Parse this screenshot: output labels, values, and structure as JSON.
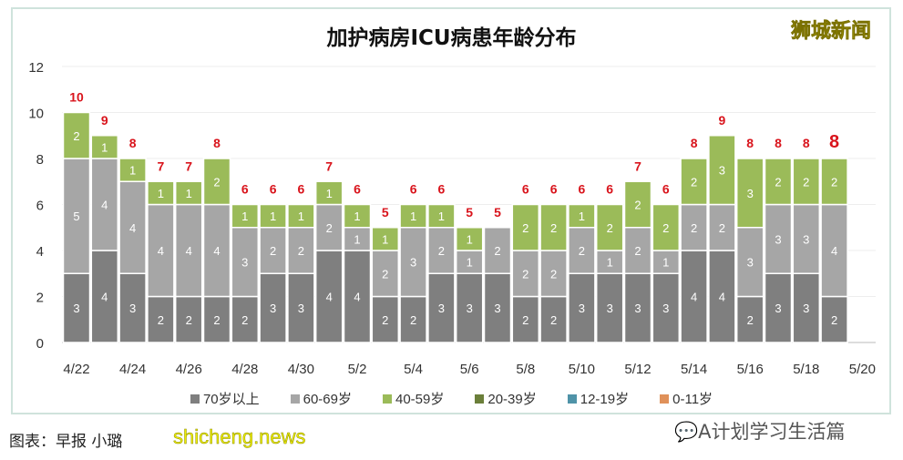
{
  "chart_data": {
    "type": "stacked-bar",
    "title": "加护病房ICU病患年龄分布",
    "categories": [
      "4/22",
      "4/23",
      "4/24",
      "4/25",
      "4/26",
      "4/27",
      "4/28",
      "4/29",
      "4/30",
      "5/1",
      "5/2",
      "5/3",
      "5/4",
      "5/5",
      "5/6",
      "5/7",
      "5/8",
      "5/9",
      "5/10",
      "5/11",
      "5/12",
      "5/13",
      "5/14",
      "5/15",
      "5/16",
      "5/17",
      "5/18",
      "5/19"
    ],
    "xtick_labels": [
      "4/22",
      "4/24",
      "4/26",
      "4/28",
      "4/30",
      "5/2",
      "5/4",
      "5/6",
      "5/8",
      "5/10",
      "5/12",
      "5/14",
      "5/16",
      "5/18",
      "5/20"
    ],
    "ytick_labels": [
      "0",
      "2",
      "4",
      "6",
      "8",
      "10",
      "12"
    ],
    "ylim": [
      0,
      12
    ],
    "grid": true,
    "legend_placement": "bottom",
    "series": [
      {
        "name": "70岁以上",
        "color": "#7f7f7f",
        "values": [
          3,
          4,
          3,
          2,
          2,
          2,
          2,
          3,
          3,
          4,
          4,
          2,
          2,
          3,
          3,
          3,
          2,
          2,
          3,
          3,
          3,
          3,
          4,
          4,
          2,
          3,
          3,
          2
        ]
      },
      {
        "name": "60-69岁",
        "color": "#a6a6a6",
        "values": [
          5,
          4,
          4,
          4,
          4,
          4,
          3,
          2,
          2,
          2,
          1,
          2,
          3,
          2,
          1,
          2,
          2,
          2,
          2,
          1,
          2,
          1,
          2,
          2,
          3,
          3,
          3,
          4
        ]
      },
      {
        "name": "40-59岁",
        "color": "#9bbb59",
        "values": [
          2,
          1,
          1,
          1,
          1,
          2,
          1,
          1,
          1,
          1,
          1,
          1,
          1,
          1,
          1,
          0,
          2,
          2,
          1,
          2,
          2,
          2,
          2,
          3,
          3,
          2,
          2,
          2
        ]
      },
      {
        "name": "20-39岁",
        "color": "#6b7f3a",
        "values": [
          0,
          0,
          0,
          0,
          0,
          0,
          0,
          0,
          0,
          0,
          0,
          0,
          0,
          0,
          0,
          0,
          0,
          0,
          0,
          0,
          0,
          0,
          0,
          0,
          0,
          0,
          0,
          0
        ]
      },
      {
        "name": "12-19岁",
        "color": "#4f93a8",
        "values": [
          0,
          0,
          0,
          0,
          0,
          0,
          0,
          0,
          0,
          0,
          0,
          0,
          0,
          0,
          0,
          0,
          0,
          0,
          0,
          0,
          0,
          0,
          0,
          0,
          0,
          0,
          0,
          0
        ]
      },
      {
        "name": "0-11岁",
        "color": "#e0915a",
        "values": [
          0,
          0,
          0,
          0,
          0,
          0,
          0,
          0,
          0,
          0,
          0,
          0,
          0,
          0,
          0,
          0,
          0,
          0,
          0,
          0,
          0,
          0,
          0,
          0,
          0,
          0,
          0,
          0
        ]
      }
    ],
    "totals": [
      10,
      9,
      8,
      7,
      7,
      8,
      6,
      6,
      6,
      7,
      6,
      5,
      6,
      6,
      5,
      5,
      6,
      6,
      6,
      6,
      7,
      6,
      8,
      9,
      8,
      8,
      8,
      8
    ],
    "total_label_color": "#d9141c"
  },
  "logo_text": "狮城新闻",
  "credit": "图表：早报 小璐",
  "watermark": "shicheng.news",
  "wechat_account": "A计划学习生活篇"
}
